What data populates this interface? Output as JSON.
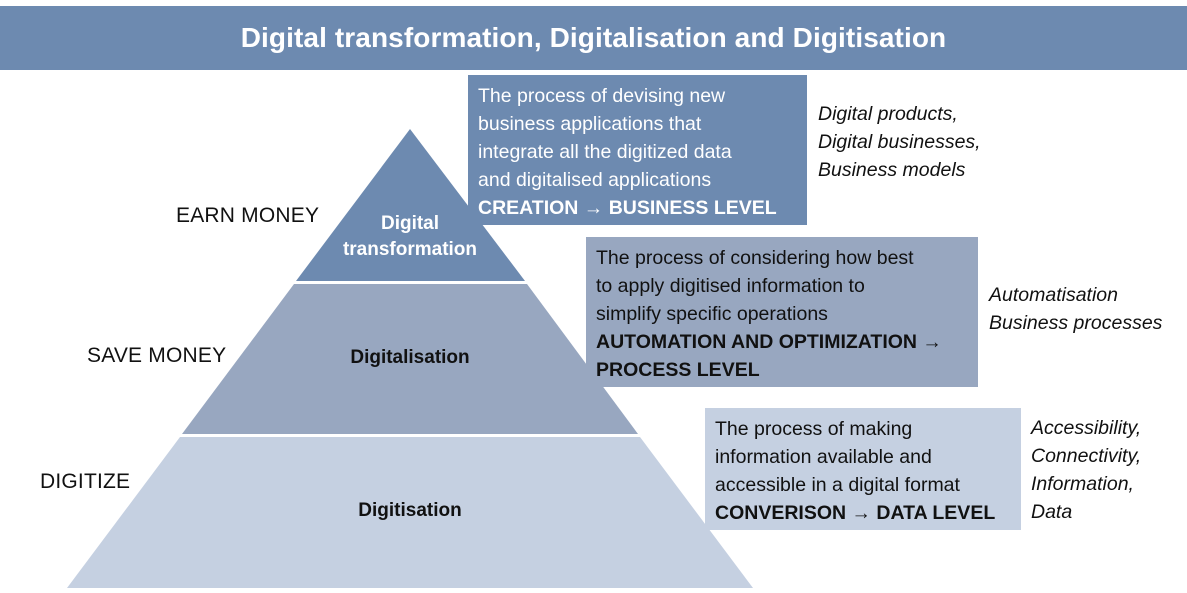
{
  "header": {
    "title": "Digital transformation, Digitalisation and Digitisation"
  },
  "pyramid": {
    "top": {
      "label_lines": [
        "Digital",
        "transformation"
      ],
      "side_label": "EARN MONEY",
      "color": "#6d8ab0"
    },
    "middle": {
      "label_lines": [
        "Digitalisation"
      ],
      "side_label": "SAVE MONEY",
      "color": "#98a7c0"
    },
    "bottom": {
      "label_lines": [
        "Digitisation"
      ],
      "side_label": "DIGITIZE",
      "color": "#c5d0e1"
    }
  },
  "descriptions": [
    {
      "lines": [
        "The process of devising new",
        "business applications that",
        "integrate all the digitized data",
        "and digitalised applications"
      ],
      "level_lines": [
        "CREATION → BUSINESS LEVEL"
      ],
      "examples": [
        "Digital products,",
        "Digital businesses,",
        "Business models"
      ]
    },
    {
      "lines": [
        "The process of considering how best",
        "to apply digitised information to",
        "simplify specific operations"
      ],
      "level_lines": [
        "AUTOMATION AND OPTIMIZATION →",
        "PROCESS LEVEL"
      ],
      "examples": [
        "Automatisation",
        "Business processes"
      ]
    },
    {
      "lines": [
        "The process of making",
        "information available and",
        "accessible in a digital format"
      ],
      "level_lines": [
        "CONVERISON → DATA LEVEL"
      ],
      "examples": [
        "Accessibility,",
        "Connectivity,",
        "Information,",
        "Data"
      ]
    }
  ]
}
